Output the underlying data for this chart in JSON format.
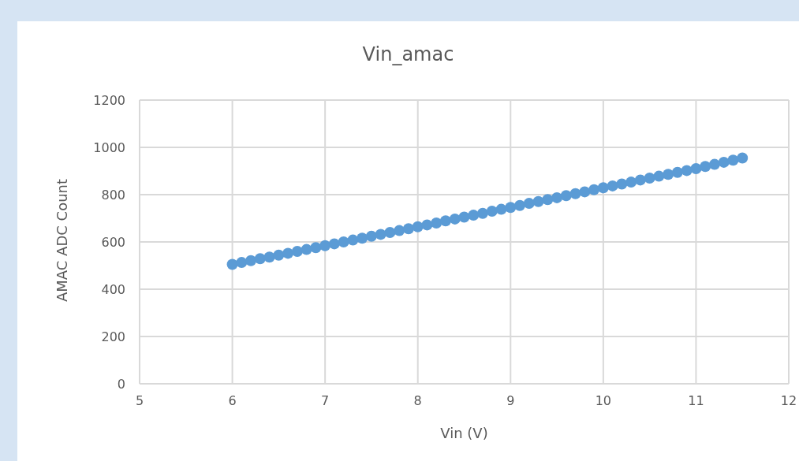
{
  "chart_data": {
    "type": "scatter",
    "title": "Vin_amac",
    "xlabel": "Vin (V)",
    "ylabel": "AMAC ADC Count",
    "x": [
      6.0,
      6.1,
      6.2,
      6.3,
      6.4,
      6.5,
      6.6,
      6.7,
      6.8,
      6.9,
      7.0,
      7.1,
      7.2,
      7.3,
      7.4,
      7.5,
      7.6,
      7.7,
      7.8,
      7.9,
      8.0,
      8.1,
      8.2,
      8.3,
      8.4,
      8.5,
      8.6,
      8.7,
      8.8,
      8.9,
      9.0,
      9.1,
      9.2,
      9.3,
      9.4,
      9.5,
      9.6,
      9.7,
      9.8,
      9.9,
      10.0,
      10.1,
      10.2,
      10.3,
      10.4,
      10.5,
      10.6,
      10.7,
      10.8,
      10.9,
      11.0,
      11.1,
      11.2,
      11.3,
      11.4,
      11.5
    ],
    "series": [
      {
        "color": "#5b9bd5",
        "values": [
          505,
          513,
          521,
          529,
          536,
          544,
          552,
          560,
          568,
          576,
          584,
          592,
          600,
          608,
          616,
          624,
          632,
          640,
          648,
          656,
          664,
          672,
          680,
          689,
          697,
          705,
          713,
          721,
          730,
          738,
          746,
          754,
          763,
          771,
          779,
          787,
          796,
          804,
          812,
          821,
          829,
          837,
          845,
          853,
          862,
          870,
          878,
          886,
          894,
          902,
          910,
          919,
          928,
          937,
          946,
          955
        ]
      }
    ],
    "xlim": [
      5,
      12
    ],
    "xticks": [
      5,
      6,
      7,
      8,
      9,
      10,
      11,
      12
    ],
    "ylim": [
      0,
      1200
    ],
    "yticks": [
      0,
      200,
      400,
      600,
      800,
      1000,
      1200
    ],
    "grid": true,
    "legend": false,
    "marker": "circle"
  }
}
